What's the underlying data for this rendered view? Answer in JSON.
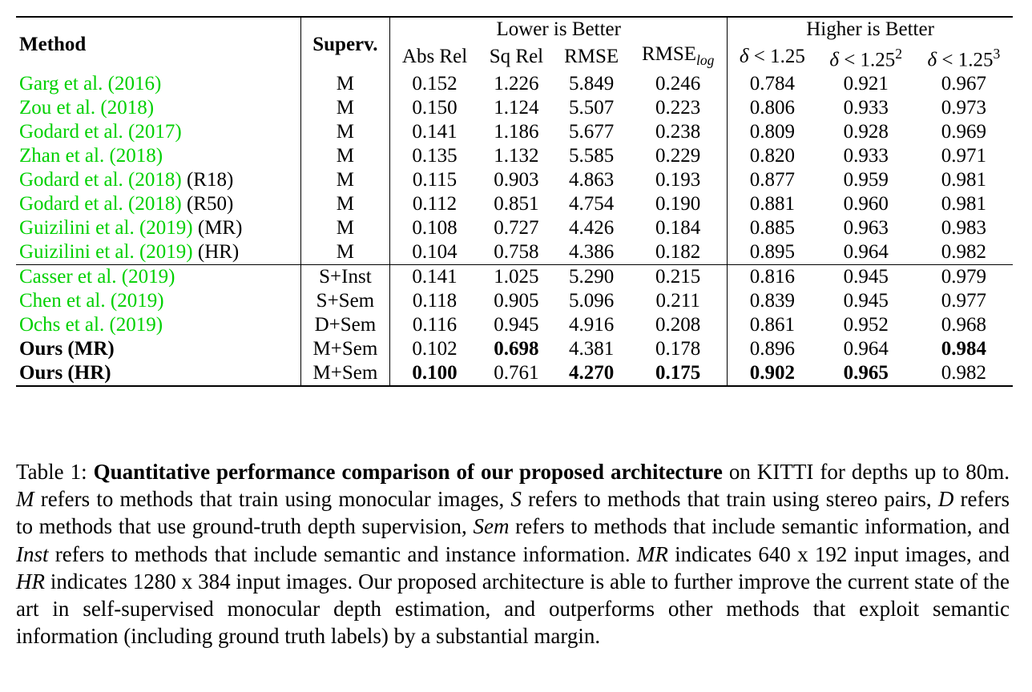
{
  "table": {
    "header": {
      "method": "Method",
      "superv": "Superv.",
      "lower_group": "Lower is Better",
      "higher_group": "Higher is Better",
      "abs_rel": "Abs Rel",
      "sq_rel": "Sq Rel",
      "rmse": "RMSE",
      "rmse_log_base": "RMSE",
      "rmse_log_sub": "log",
      "delta": "δ",
      "lt": "< 1.25",
      "sup2": "2",
      "sup3": "3"
    },
    "group_a": [
      {
        "author": "Garg et al. (",
        "year": "2016",
        "close": ")",
        "extra": "",
        "superv": "M",
        "vals": [
          "0.152",
          "1.226",
          "5.849",
          "0.246",
          "0.784",
          "0.921",
          "0.967"
        ]
      },
      {
        "author": "Zou et al. (",
        "year": "2018",
        "close": ")",
        "extra": "",
        "superv": "M",
        "vals": [
          "0.150",
          "1.124",
          "5.507",
          "0.223",
          "0.806",
          "0.933",
          "0.973"
        ]
      },
      {
        "author": "Godard et al. (",
        "year": "2017",
        "close": ")",
        "extra": "",
        "superv": "M",
        "vals": [
          "0.141",
          "1.186",
          "5.677",
          "0.238",
          "0.809",
          "0.928",
          "0.969"
        ]
      },
      {
        "author": "Zhan et al. (",
        "year": "2018",
        "close": ")",
        "extra": "",
        "superv": "M",
        "vals": [
          "0.135",
          "1.132",
          "5.585",
          "0.229",
          "0.820",
          "0.933",
          "0.971"
        ]
      },
      {
        "author": "Godard et al. (",
        "year": "2018",
        "close": ")",
        "extra": " (R18)",
        "superv": "M",
        "vals": [
          "0.115",
          "0.903",
          "4.863",
          "0.193",
          "0.877",
          "0.959",
          "0.981"
        ]
      },
      {
        "author": "Godard et al. (",
        "year": "2018",
        "close": ")",
        "extra": " (R50)",
        "superv": "M",
        "vals": [
          "0.112",
          "0.851",
          "4.754",
          "0.190",
          "0.881",
          "0.960",
          "0.981"
        ]
      },
      {
        "author": "Guizilini et al. (",
        "year": "2019",
        "close": ")",
        "extra": " (MR)",
        "superv": "M",
        "vals": [
          "0.108",
          "0.727",
          "4.426",
          "0.184",
          "0.885",
          "0.963",
          "0.983"
        ]
      },
      {
        "author": "Guizilini et al. (",
        "year": "2019",
        "close": ")",
        "extra": " (HR)",
        "superv": "M",
        "vals": [
          "0.104",
          "0.758",
          "4.386",
          "0.182",
          "0.895",
          "0.964",
          "0.982"
        ]
      }
    ],
    "group_b": [
      {
        "author": "Casser et al. (",
        "year": "2019",
        "close": ")",
        "superv": "S+Inst",
        "vals": [
          "0.141",
          "1.025",
          "5.290",
          "0.215",
          "0.816",
          "0.945",
          "0.979"
        ]
      },
      {
        "author": "Chen et al. (",
        "year": "2019",
        "close": ")",
        "superv": "S+Sem",
        "vals": [
          "0.118",
          "0.905",
          "5.096",
          "0.211",
          "0.839",
          "0.945",
          "0.977"
        ]
      },
      {
        "author": "Ochs et al. (",
        "year": "2019",
        "close": ")",
        "superv": "D+Sem",
        "vals": [
          "0.116",
          "0.945",
          "4.916",
          "0.208",
          "0.861",
          "0.952",
          "0.968"
        ]
      }
    ],
    "ours": [
      {
        "name": "Ours (MR)",
        "superv": "M+Sem",
        "vals": [
          "0.102",
          "0.698",
          "4.381",
          "0.178",
          "0.896",
          "0.964",
          "0.984"
        ],
        "bold": [
          false,
          true,
          false,
          false,
          false,
          false,
          true
        ]
      },
      {
        "name": "Ours (HR)",
        "superv": "M+Sem",
        "vals": [
          "0.100",
          "0.761",
          "4.270",
          "0.175",
          "0.902",
          "0.965",
          "0.982"
        ],
        "bold": [
          true,
          false,
          true,
          true,
          true,
          true,
          false
        ]
      }
    ]
  },
  "caption": {
    "label": "Table 1:",
    "title": "Quantitative performance comparison of our proposed architecture",
    "t1": " on KITTI for depths up to 80m. ",
    "m": "M",
    "t2": " refers to methods that train using monocular images, ",
    "s": "S",
    "t3": " refers to methods that train using stereo pairs, ",
    "d": "D",
    "t4": " refers to methods that use ground-truth depth supervision, ",
    "sem": "Sem",
    "t5": " refers to methods that include semantic information, and ",
    "inst": "Inst",
    "t6": " refers to methods that include semantic and instance information. ",
    "mr": "MR",
    "t7": " indicates 640 x 192 input images, and ",
    "hr": "HR",
    "t8": " indicates 1280 x 384 input images. Our proposed architecture is able to further improve the current state of the art in self-supervised monocular depth estimation, and outperforms other methods that exploit semantic information (including ground truth labels) by a substantial margin."
  }
}
